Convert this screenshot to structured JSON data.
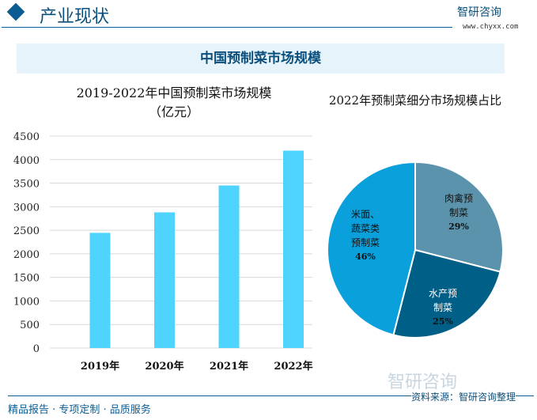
{
  "header": {
    "title": "产业现状",
    "logo": "智研咨询",
    "url": "www.chyxx.com"
  },
  "banner": "中国预制菜市场规模",
  "footer": {
    "left": "精品报告 · 专项定制 · 品质服务",
    "source": "资料来源：智研咨询整理",
    "watermark_logo": "智研咨询"
  },
  "chart_data": [
    {
      "type": "bar",
      "title": "2019-2022年中国预制菜市场规模",
      "subtitle": "（亿元）",
      "categories": [
        "2019年",
        "2020年",
        "2021年",
        "2022年"
      ],
      "values": [
        2445,
        2880,
        3450,
        4190
      ],
      "ylim": [
        0,
        4500
      ],
      "yticks": [
        0,
        500,
        1000,
        1500,
        2000,
        2500,
        3000,
        3500,
        4000,
        4500
      ],
      "grid": true,
      "color": "#4fd3ff"
    },
    {
      "type": "pie",
      "title": "2022年预制菜细分市场规模占比",
      "slices": [
        {
          "label": "肉禽预制菜",
          "value": 29,
          "text": "29%",
          "color": "#5b93ad"
        },
        {
          "label": "水产预制菜",
          "value": 25,
          "text": "25%",
          "color": "#005f87"
        },
        {
          "label": "米面、蔬菜类预制菜",
          "value": 46,
          "text": "46%",
          "color": "#0aa0dc"
        }
      ]
    }
  ]
}
